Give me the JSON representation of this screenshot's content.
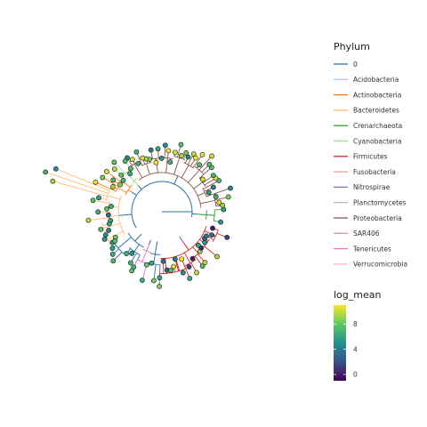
{
  "chart_data": {
    "type": "circular-phylogenetic-tree",
    "legend_phylum": {
      "title": "Phylum",
      "entries": [
        {
          "name": "0",
          "color": "#2b6fa6"
        },
        {
          "name": "Acidobacteria",
          "color": "#aec7e8"
        },
        {
          "name": "Actinobacteria",
          "color": "#ff7f0e"
        },
        {
          "name": "Bacteroidetes",
          "color": "#ffbb78"
        },
        {
          "name": "Crenarchaeota",
          "color": "#2ca02c"
        },
        {
          "name": "Cyanobacteria",
          "color": "#98df8a"
        },
        {
          "name": "Firmicutes",
          "color": "#d62728"
        },
        {
          "name": "Fusobacteria",
          "color": "#ff9896"
        },
        {
          "name": "Nitrospirae",
          "color": "#9467bd"
        },
        {
          "name": "Planctomycetes",
          "color": "#c5b0d5"
        },
        {
          "name": "Proteobacteria",
          "color": "#8c564b"
        },
        {
          "name": "SAR406",
          "color": "#c49c94"
        },
        {
          "name": "Tenericutes",
          "color": "#e377c2"
        },
        {
          "name": "Verrucomicrobia",
          "color": "#f7b6d2"
        }
      ]
    },
    "legend_colorbar": {
      "title": "log_mean",
      "ticks": [
        0,
        4,
        8
      ],
      "range": [
        -1,
        11
      ]
    },
    "tip_groups": [
      {
        "phylum": "Bacteroidetes",
        "from_deg": 158,
        "to_deg": 212,
        "tips": 18,
        "log_mean_range": [
          3,
          10
        ]
      },
      {
        "phylum": "0",
        "from_deg": 212,
        "to_deg": 243,
        "tips": 8,
        "log_mean_range": [
          5,
          8
        ]
      },
      {
        "phylum": "Tenericutes",
        "from_deg": 243,
        "to_deg": 254,
        "tips": 2,
        "log_mean_range": [
          6,
          8
        ]
      },
      {
        "phylum": "0",
        "from_deg": 254,
        "to_deg": 268,
        "tips": 4,
        "log_mean_range": [
          5,
          9
        ]
      },
      {
        "phylum": "Firmicutes",
        "from_deg": 268,
        "to_deg": 342,
        "tips": 22,
        "log_mean_range": [
          0,
          11
        ]
      },
      {
        "phylum": "Crenarchaeota",
        "from_deg": 350,
        "to_deg": 362,
        "tips": 2,
        "log_mean_range": [
          5,
          7
        ]
      },
      {
        "phylum": "Proteobacteria",
        "from_deg": 6,
        "to_deg": 126,
        "tips": 38,
        "log_mean_range": [
          4,
          11
        ]
      },
      {
        "phylum": "Cyanobacteria",
        "from_deg": 126,
        "to_deg": 138,
        "tips": 4,
        "log_mean_range": [
          6,
          10
        ]
      },
      {
        "phylum": "Actinobacteria",
        "from_deg": 138,
        "to_deg": 156,
        "tips": 7,
        "log_mean_range": [
          6,
          11
        ]
      }
    ]
  }
}
